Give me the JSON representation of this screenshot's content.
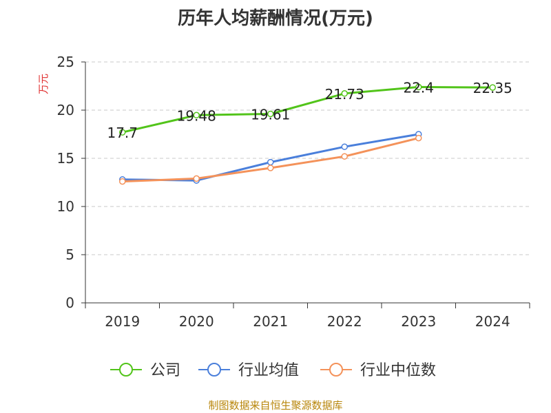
{
  "chart_data": {
    "type": "line",
    "title": "历年人均薪酬情况(万元)",
    "ylabel": "万元",
    "xlabel": "",
    "ylim": [
      0,
      25
    ],
    "yticks": [
      0,
      5,
      10,
      15,
      20,
      25
    ],
    "categories": [
      "2019",
      "2020",
      "2021",
      "2022",
      "2023",
      "2024"
    ],
    "grid": true,
    "legend_position": "bottom",
    "series": [
      {
        "name": "公司",
        "color": "#52c41a",
        "values": [
          17.7,
          19.48,
          19.61,
          21.73,
          22.4,
          22.35
        ],
        "labels": [
          "17.7",
          "19.48",
          "19.61",
          "21.73",
          "22.4",
          "22.35"
        ]
      },
      {
        "name": "行业均值",
        "color": "#4a7fdb",
        "values": [
          12.8,
          12.7,
          14.6,
          16.2,
          17.5,
          null
        ],
        "labels": null
      },
      {
        "name": "行业中位数",
        "color": "#f4925a",
        "values": [
          12.6,
          12.9,
          14.0,
          15.2,
          17.1,
          null
        ],
        "labels": null
      }
    ]
  },
  "source_note": "制图数据来自恒生聚源数据库"
}
